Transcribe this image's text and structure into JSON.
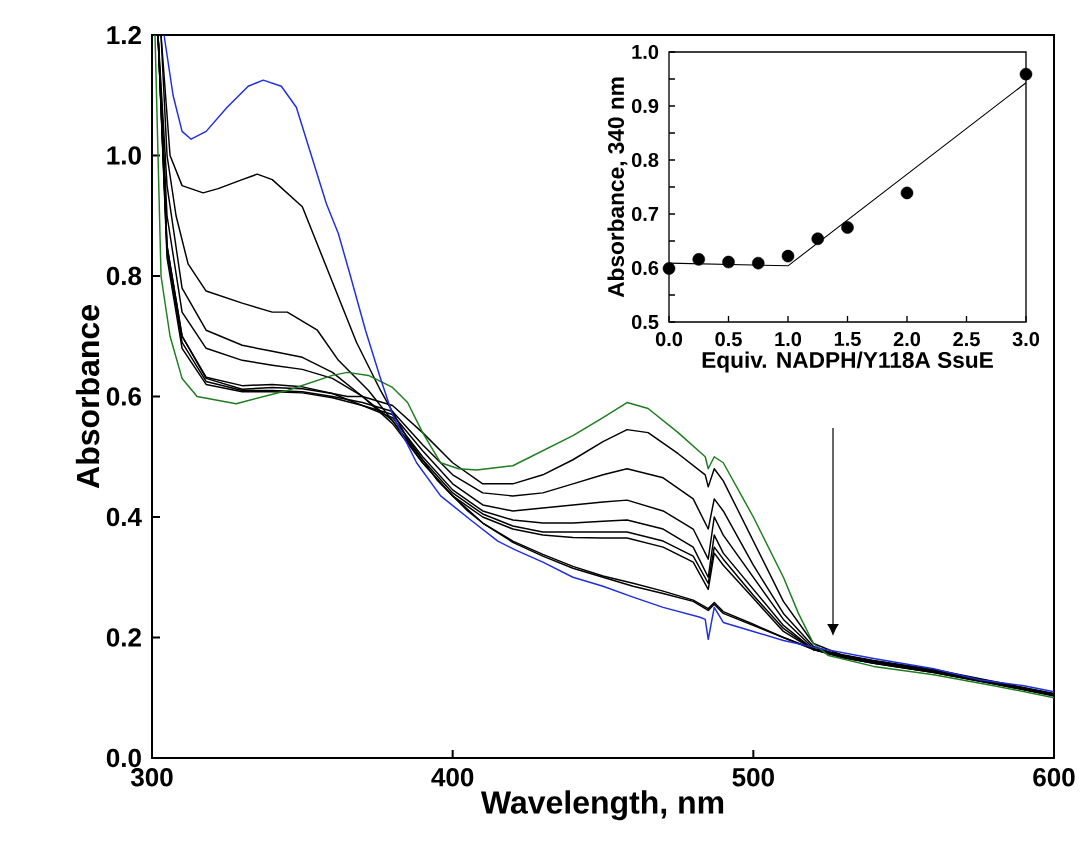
{
  "chart_data": [
    {
      "type": "line",
      "xlabel": "Wavelength, nm",
      "ylabel": "Absorbance",
      "xlim": [
        300,
        600
      ],
      "ylim": [
        0,
        1.2
      ],
      "xticks": [
        300,
        400,
        500,
        600
      ],
      "yticks": [
        {
          "value": 0,
          "label": "0.0"
        },
        {
          "value": 0.2,
          "label": "0.2"
        },
        {
          "value": 0.4,
          "label": "0.4"
        },
        {
          "value": 0.6,
          "label": "0.6"
        },
        {
          "value": 0.8,
          "label": "0.8"
        },
        {
          "value": 1.0,
          "label": "1.0"
        },
        {
          "value": 1.2,
          "label": "1.2"
        }
      ],
      "series": [
        {
          "color": "#000000",
          "x": [
            302,
            305,
            310,
            318,
            330,
            340,
            350,
            360,
            365,
            370,
            380,
            390,
            400,
            410,
            420,
            430,
            440,
            450,
            458,
            465,
            475,
            484,
            485,
            487,
            490,
            500,
            510,
            520,
            530,
            540,
            560,
            580,
            600
          ],
          "values": [
            1.2,
            0.85,
            0.7,
            0.63,
            0.612,
            0.615,
            0.613,
            0.605,
            0.6,
            0.6,
            0.585,
            0.54,
            0.49,
            0.455,
            0.455,
            0.47,
            0.495,
            0.525,
            0.545,
            0.54,
            0.505,
            0.47,
            0.45,
            0.48,
            0.46,
            0.36,
            0.26,
            0.19,
            0.17,
            0.16,
            0.145,
            0.125,
            0.105
          ]
        },
        {
          "color": "#000000",
          "x": [
            302,
            305,
            310,
            318,
            330,
            340,
            350,
            360,
            370,
            380,
            390,
            400,
            410,
            420,
            430,
            440,
            450,
            458,
            470,
            480,
            485,
            487,
            490,
            500,
            510,
            520,
            530,
            540,
            560,
            580,
            600
          ],
          "values": [
            1.2,
            0.84,
            0.69,
            0.625,
            0.61,
            0.61,
            0.608,
            0.6,
            0.59,
            0.575,
            0.52,
            0.47,
            0.44,
            0.435,
            0.44,
            0.455,
            0.47,
            0.48,
            0.465,
            0.43,
            0.38,
            0.43,
            0.41,
            0.32,
            0.24,
            0.185,
            0.168,
            0.158,
            0.143,
            0.124,
            0.104
          ]
        },
        {
          "color": "#000000",
          "x": [
            302,
            305,
            310,
            318,
            330,
            340,
            350,
            360,
            370,
            380,
            390,
            400,
            410,
            420,
            430,
            440,
            450,
            458,
            470,
            480,
            485,
            487,
            490,
            500,
            510,
            520,
            530,
            540,
            560,
            580,
            600
          ],
          "values": [
            1.2,
            0.83,
            0.68,
            0.62,
            0.608,
            0.608,
            0.606,
            0.598,
            0.585,
            0.57,
            0.51,
            0.455,
            0.42,
            0.41,
            0.415,
            0.42,
            0.425,
            0.428,
            0.41,
            0.38,
            0.33,
            0.4,
            0.37,
            0.3,
            0.23,
            0.182,
            0.167,
            0.157,
            0.142,
            0.123,
            0.104
          ]
        },
        {
          "color": "#000000",
          "x": [
            302,
            305,
            310,
            318,
            330,
            340,
            350,
            360,
            370,
            380,
            390,
            400,
            410,
            420,
            430,
            440,
            450,
            458,
            470,
            480,
            485,
            487,
            490,
            500,
            510,
            520,
            530,
            540,
            560,
            580,
            600
          ],
          "values": [
            1.2,
            0.85,
            0.7,
            0.632,
            0.618,
            0.62,
            0.616,
            0.605,
            0.585,
            0.565,
            0.5,
            0.445,
            0.41,
            0.395,
            0.39,
            0.39,
            0.393,
            0.395,
            0.38,
            0.35,
            0.3,
            0.37,
            0.34,
            0.28,
            0.22,
            0.18,
            0.166,
            0.157,
            0.142,
            0.123,
            0.103
          ]
        },
        {
          "color": "#000000",
          "x": [
            302,
            305,
            310,
            318,
            330,
            340,
            350,
            360,
            370,
            380,
            390,
            400,
            410,
            420,
            430,
            440,
            450,
            458,
            470,
            480,
            485,
            487,
            490,
            500,
            510,
            520,
            530,
            540,
            560,
            580,
            600
          ],
          "values": [
            1.2,
            0.9,
            0.74,
            0.68,
            0.66,
            0.652,
            0.645,
            0.63,
            0.6,
            0.56,
            0.495,
            0.44,
            0.405,
            0.385,
            0.375,
            0.375,
            0.375,
            0.375,
            0.36,
            0.335,
            0.29,
            0.35,
            0.33,
            0.27,
            0.215,
            0.18,
            0.167,
            0.158,
            0.143,
            0.124,
            0.104
          ]
        },
        {
          "color": "#000000",
          "x": [
            302,
            305,
            310,
            318,
            330,
            340,
            350,
            360,
            370,
            380,
            390,
            400,
            410,
            420,
            430,
            440,
            450,
            458,
            470,
            480,
            485,
            487,
            490,
            500,
            510,
            520,
            530,
            540,
            560,
            580,
            600
          ],
          "values": [
            1.2,
            0.95,
            0.78,
            0.71,
            0.685,
            0.675,
            0.665,
            0.64,
            0.6,
            0.555,
            0.49,
            0.435,
            0.4,
            0.38,
            0.37,
            0.366,
            0.365,
            0.365,
            0.35,
            0.325,
            0.28,
            0.34,
            0.32,
            0.265,
            0.21,
            0.18,
            0.168,
            0.159,
            0.144,
            0.125,
            0.105
          ]
        },
        {
          "color": "#000000",
          "x": [
            303,
            305,
            308,
            312,
            318,
            330,
            340,
            345,
            355,
            362,
            372,
            380,
            390,
            400,
            410,
            420,
            430,
            440,
            450,
            460,
            470,
            480,
            485,
            487,
            490,
            500,
            510,
            520,
            530,
            540,
            560,
            580,
            600
          ],
          "values": [
            1.2,
            1.0,
            0.9,
            0.82,
            0.775,
            0.755,
            0.74,
            0.74,
            0.71,
            0.66,
            0.61,
            0.56,
            0.49,
            0.435,
            0.39,
            0.36,
            0.338,
            0.318,
            0.302,
            0.29,
            0.277,
            0.262,
            0.248,
            0.258,
            0.243,
            0.222,
            0.2,
            0.18,
            0.17,
            0.161,
            0.146,
            0.126,
            0.106
          ]
        },
        {
          "color": "#000000",
          "x": [
            303,
            306,
            310,
            317,
            322,
            330,
            335,
            340,
            350,
            360,
            368,
            376,
            385,
            395,
            405,
            410,
            420,
            430,
            440,
            450,
            460,
            470,
            480,
            485,
            487,
            490,
            500,
            510,
            520,
            530,
            540,
            560,
            580,
            600
          ],
          "values": [
            1.2,
            1.0,
            0.95,
            0.938,
            0.945,
            0.96,
            0.969,
            0.96,
            0.915,
            0.79,
            0.69,
            0.61,
            0.53,
            0.46,
            0.41,
            0.39,
            0.358,
            0.335,
            0.315,
            0.3,
            0.285,
            0.273,
            0.26,
            0.245,
            0.255,
            0.24,
            0.22,
            0.2,
            0.181,
            0.171,
            0.162,
            0.147,
            0.127,
            0.107
          ]
        },
        {
          "color": "#1e7d1e",
          "x": [
            301,
            303,
            306,
            310,
            315,
            328,
            345,
            360,
            365,
            372,
            380,
            385,
            390,
            396,
            402,
            408,
            420,
            430,
            440,
            450,
            458,
            465,
            475,
            484,
            485,
            487,
            490,
            500,
            510,
            515,
            520,
            525,
            540,
            560,
            580,
            600
          ],
          "values": [
            1.2,
            0.8,
            0.7,
            0.63,
            0.6,
            0.588,
            0.61,
            0.635,
            0.64,
            0.635,
            0.615,
            0.59,
            0.54,
            0.49,
            0.48,
            0.478,
            0.485,
            0.51,
            0.535,
            0.565,
            0.59,
            0.58,
            0.54,
            0.5,
            0.48,
            0.5,
            0.49,
            0.4,
            0.3,
            0.24,
            0.19,
            0.17,
            0.152,
            0.138,
            0.12,
            0.1
          ]
        },
        {
          "color": "#1f2fe0",
          "x": [
            304,
            307,
            310,
            313,
            318,
            325,
            332,
            337,
            343,
            348,
            353,
            358,
            362,
            366,
            371,
            376,
            380,
            388,
            396,
            406,
            415,
            421,
            430,
            440,
            450,
            460,
            470,
            482,
            484,
            485,
            487,
            490,
            500,
            510,
            520,
            540,
            560,
            575,
            590,
            600
          ],
          "values": [
            1.2,
            1.1,
            1.04,
            1.027,
            1.04,
            1.08,
            1.115,
            1.125,
            1.115,
            1.08,
            1.0,
            0.92,
            0.87,
            0.8,
            0.71,
            0.63,
            0.57,
            0.49,
            0.435,
            0.395,
            0.36,
            0.345,
            0.325,
            0.3,
            0.285,
            0.267,
            0.25,
            0.234,
            0.23,
            0.197,
            0.25,
            0.225,
            0.21,
            0.195,
            0.184,
            0.165,
            0.148,
            0.13,
            0.12,
            0.11
          ]
        }
      ]
    },
    {
      "type": "scatter",
      "xlabel": "Equiv. NADPH/Y118A SsuE",
      "ylabel": "Absorbance, 340 nm",
      "xlim": [
        0,
        3
      ],
      "ylim": [
        0.5,
        1.0
      ],
      "xticks": [
        {
          "value": 0,
          "label": "0.0"
        },
        {
          "value": 0.5,
          "label": "0.5"
        },
        {
          "value": 1.0,
          "label": "1.0"
        },
        {
          "value": 1.5,
          "label": "1.5"
        },
        {
          "value": 2.0,
          "label": "2.0"
        },
        {
          "value": 2.5,
          "label": "2.5"
        },
        {
          "value": 3.0,
          "label": "3.0"
        }
      ],
      "yticks": [
        0.5,
        {
          "value": 0.55,
          "label": null
        },
        0.6,
        {
          "value": 0.65,
          "label": null
        },
        0.7,
        {
          "value": 0.75,
          "label": null
        },
        0.8,
        {
          "value": 0.85,
          "label": null
        },
        0.9,
        {
          "value": 0.95,
          "label": null
        },
        {
          "value": 1.0,
          "label": "1.0"
        }
      ],
      "series": [
        {
          "type": "scatter",
          "marker": "circle",
          "color": "#000000",
          "x": [
            0,
            0.25,
            0.5,
            0.75,
            1.0,
            1.25,
            1.5,
            2.0,
            3.0
          ],
          "values": [
            0.599,
            0.616,
            0.611,
            0.609,
            0.622,
            0.654,
            0.675,
            0.739,
            0.959
          ]
        },
        {
          "type": "line",
          "color": "#000000",
          "x": [
            0,
            1.0,
            3.0
          ],
          "values": [
            0.609,
            0.604,
            0.943
          ]
        }
      ]
    }
  ]
}
